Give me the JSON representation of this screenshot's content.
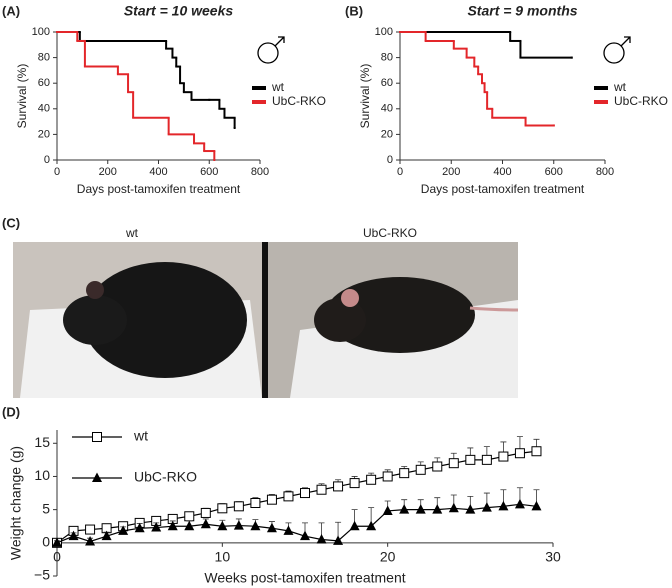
{
  "chart_data": [
    {
      "type": "step",
      "panel": "(A)",
      "title": "Start = 10 weeks",
      "x_label": "Days post-tamoxifen treatment",
      "y_label": "Survival (%)",
      "xlim": [
        0,
        800
      ],
      "xticks": [
        0,
        200,
        400,
        600,
        800
      ],
      "ylim": [
        0,
        100
      ],
      "yticks": [
        0,
        20,
        40,
        60,
        80,
        100
      ],
      "series": [
        {
          "name": "wt",
          "color": "#000000",
          "x": [
            0,
            90,
            430,
            455,
            470,
            485,
            500,
            530,
            600,
            640,
            660,
            700
          ],
          "values": [
            100,
            93,
            87,
            80,
            73,
            60,
            53,
            47,
            47,
            40,
            33,
            25
          ]
        },
        {
          "name": "UbC-RKO",
          "color": "#e3262a",
          "x": [
            0,
            80,
            110,
            240,
            280,
            300,
            440,
            540,
            580,
            620
          ],
          "values": [
            100,
            93,
            73,
            67,
            53,
            33,
            20,
            13,
            7,
            0
          ]
        }
      ]
    },
    {
      "type": "step",
      "panel": "(B)",
      "title": "Start = 9 months",
      "x_label": "Days post-tamoxifen treatment",
      "y_label": "Survival (%)",
      "xlim": [
        0,
        800
      ],
      "xticks": [
        0,
        200,
        400,
        600,
        800
      ],
      "ylim": [
        0,
        100
      ],
      "yticks": [
        0,
        20,
        40,
        60,
        80,
        100
      ],
      "series": [
        {
          "name": "wt",
          "color": "#000000",
          "x": [
            0,
            430,
            470,
            670
          ],
          "values": [
            100,
            93,
            80,
            80
          ]
        },
        {
          "name": "UbC-RKO",
          "color": "#e3262a",
          "x": [
            0,
            100,
            210,
            260,
            290,
            305,
            320,
            330,
            340,
            360,
            490,
            600
          ],
          "values": [
            100,
            93,
            87,
            80,
            73,
            67,
            60,
            53,
            40,
            33,
            27,
            27
          ]
        }
      ]
    },
    {
      "type": "photo",
      "panel": "(C)",
      "captions": [
        "wt",
        "UbC-RKO"
      ]
    },
    {
      "type": "line",
      "panel": "(D)",
      "x_label": "Weeks post-tamoxifen treatment",
      "y_label": "Weight change (g)",
      "xlim": [
        0,
        30
      ],
      "xticks": [
        0,
        10,
        20,
        30
      ],
      "ylim": [
        -5,
        17
      ],
      "yticks": [
        {
          "value": -5,
          "label": "−5"
        },
        0,
        5,
        10,
        15
      ],
      "x": [
        0,
        1,
        2,
        3,
        4,
        5,
        6,
        7,
        8,
        9,
        10,
        11,
        12,
        13,
        14,
        15,
        16,
        17,
        18,
        19,
        20,
        21,
        22,
        23,
        24,
        25,
        26,
        27,
        28,
        29
      ],
      "series": [
        {
          "name": "wt",
          "color": "#000000",
          "marker": "square",
          "values": [
            0,
            1.8,
            2,
            2.2,
            2.5,
            3,
            3.3,
            3.6,
            4,
            4.5,
            5.2,
            5.5,
            6,
            6.5,
            7,
            7.5,
            8,
            8.5,
            9,
            9.5,
            10,
            10.5,
            11,
            11.5,
            12,
            12.5,
            12.5,
            13,
            13.5,
            13.8
          ],
          "errors": [
            0.3,
            0.5,
            0.5,
            0.5,
            0.5,
            0.5,
            0.6,
            0.6,
            0.6,
            0.7,
            0.7,
            0.7,
            0.8,
            0.8,
            0.8,
            0.8,
            0.9,
            1,
            1,
            1,
            1,
            1,
            1.2,
            1.3,
            1.5,
            1.8,
            2,
            2.2,
            2.5,
            1.8
          ]
        },
        {
          "name": "UbC-RKO",
          "color": "#000000",
          "marker": "triangle",
          "values": [
            0,
            1,
            0.2,
            1,
            1.8,
            2.2,
            2.3,
            2.5,
            2.5,
            2.8,
            2.5,
            2.6,
            2.5,
            2.2,
            1.8,
            1,
            0.5,
            0.3,
            2.5,
            2.5,
            4.8,
            5,
            5,
            5,
            5.2,
            5,
            5.3,
            5.5,
            5.8,
            5.5
          ],
          "errors": [
            0.3,
            0.5,
            0.5,
            0.6,
            0.6,
            0.7,
            0.7,
            0.8,
            0.8,
            0.8,
            0.9,
            1,
            1,
            1,
            1.2,
            2,
            2.5,
            2.8,
            2.5,
            2.8,
            1.5,
            1.5,
            1.5,
            1.8,
            2,
            2,
            2.2,
            2.5,
            2.5,
            2.5
          ]
        }
      ]
    }
  ]
}
